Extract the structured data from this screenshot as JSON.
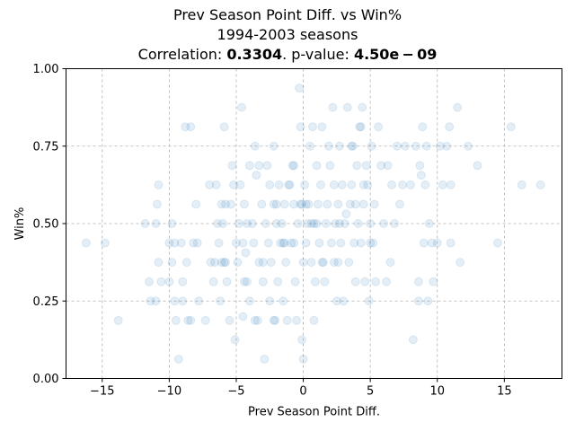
{
  "chart_data": {
    "type": "scatter",
    "title": "Prev Season Point Diff. vs Win%",
    "subtitle": "1994-2003 seasons",
    "correlation_prefix": "Correlation: ",
    "correlation_value": "0.3304",
    "pvalue_prefix": ". p-value: ",
    "pvalue_value": "4.50e − 09",
    "xlabel": "Prev Season Point Diff.",
    "ylabel": "Win%",
    "xlim": [
      -17.7,
      19.3
    ],
    "ylim": [
      0,
      1
    ],
    "grid": true,
    "x_ticks": [
      -15,
      -10,
      -5,
      0,
      5,
      10,
      15
    ],
    "x_tick_labels": [
      "−15",
      "−10",
      "−5",
      "0",
      "5",
      "10",
      "15"
    ],
    "y_ticks": [
      0,
      0.25,
      0.5,
      0.75,
      1.0
    ],
    "y_tick_labels": [
      "0.00",
      "0.25",
      "0.50",
      "0.75",
      "1.00"
    ],
    "point_color": "#1f77b4",
    "point_alpha": 0.12,
    "points": [
      [
        -16.2,
        0.4375
      ],
      [
        -14.8,
        0.4375
      ],
      [
        -13.8,
        0.1875
      ],
      [
        -11.8,
        0.5
      ],
      [
        -11.5,
        0.3125
      ],
      [
        -11.4,
        0.25
      ],
      [
        -11.0,
        0.5
      ],
      [
        -11.0,
        0.25
      ],
      [
        -10.9,
        0.5625
      ],
      [
        -10.8,
        0.625
      ],
      [
        -10.8,
        0.375
      ],
      [
        -10.6,
        0.3125
      ],
      [
        -10.0,
        0.4375
      ],
      [
        -10.0,
        0.3125
      ],
      [
        -9.8,
        0.5
      ],
      [
        -9.8,
        0.375
      ],
      [
        -9.6,
        0.4375
      ],
      [
        -9.6,
        0.25
      ],
      [
        -9.5,
        0.1875
      ],
      [
        -9.3,
        0.0625
      ],
      [
        -9.1,
        0.4375
      ],
      [
        -9.0,
        0.3125
      ],
      [
        -9.0,
        0.25
      ],
      [
        -8.8,
        0.8125
      ],
      [
        -8.7,
        0.375
      ],
      [
        -8.6,
        0.1875
      ],
      [
        -8.4,
        0.8125
      ],
      [
        -8.4,
        0.1875
      ],
      [
        -8.2,
        0.4375
      ],
      [
        -8.0,
        0.5625
      ],
      [
        -7.9,
        0.4375
      ],
      [
        -7.8,
        0.25
      ],
      [
        -7.3,
        0.1875
      ],
      [
        -7.0,
        0.625
      ],
      [
        -6.9,
        0.375
      ],
      [
        -6.7,
        0.3125
      ],
      [
        -6.6,
        0.375
      ],
      [
        -6.5,
        0.625
      ],
      [
        -6.4,
        0.5
      ],
      [
        -6.3,
        0.4375
      ],
      [
        -6.2,
        0.25
      ],
      [
        -6.1,
        0.375
      ],
      [
        -6.0,
        0.5
      ],
      [
        -5.9,
        0.8125
      ],
      [
        -5.9,
        0.375
      ],
      [
        -5.8,
        0.5625
      ],
      [
        -5.7,
        0.3125
      ],
      [
        -5.5,
        0.1875
      ],
      [
        -5.4,
        0.5625
      ],
      [
        -5.3,
        0.6875
      ],
      [
        -5.2,
        0.625
      ],
      [
        -5.1,
        0.125
      ],
      [
        -5.0,
        0.4375
      ],
      [
        -4.9,
        0.375
      ],
      [
        -4.8,
        0.5
      ],
      [
        -4.7,
        0.625
      ],
      [
        -4.6,
        0.875
      ],
      [
        -4.5,
        0.4375
      ],
      [
        -4.5,
        0.2
      ],
      [
        -4.4,
        0.5625
      ],
      [
        -4.3,
        0.4063
      ],
      [
        -4.2,
        0.5
      ],
      [
        -4.2,
        0.3125
      ],
      [
        -4.0,
        0.25
      ],
      [
        -4.0,
        0.6875
      ],
      [
        -3.8,
        0.5
      ],
      [
        -3.7,
        0.4375
      ],
      [
        -3.6,
        0.75
      ],
      [
        -3.5,
        0.6563
      ],
      [
        -3.4,
        0.1875
      ],
      [
        -3.3,
        0.375
      ],
      [
        -3.3,
        0.6875
      ],
      [
        -3.1,
        0.5625
      ],
      [
        -3.0,
        0.375
      ],
      [
        -2.9,
        0.0625
      ],
      [
        -2.8,
        0.5
      ],
      [
        -2.7,
        0.6875
      ],
      [
        -2.6,
        0.4375
      ],
      [
        -2.5,
        0.25
      ],
      [
        -2.5,
        0.625
      ],
      [
        -2.4,
        0.375
      ],
      [
        -2.2,
        0.5625
      ],
      [
        -2.2,
        0.75
      ],
      [
        -2.1,
        0.1875
      ],
      [
        -2.0,
        0.5
      ],
      [
        -1.9,
        0.3125
      ],
      [
        -1.8,
        0.625
      ],
      [
        -1.7,
        0.4375
      ],
      [
        -1.6,
        0.5
      ],
      [
        -1.5,
        0.25
      ],
      [
        -1.4,
        0.5625
      ],
      [
        -1.3,
        0.375
      ],
      [
        -1.2,
        0.1875
      ],
      [
        -1.1,
        0.625
      ],
      [
        -1.0,
        0.625
      ],
      [
        -0.9,
        0.4375
      ],
      [
        -0.8,
        0.6875
      ],
      [
        -0.7,
        0.5625
      ],
      [
        -0.7,
        0.4375
      ],
      [
        -0.6,
        0.3125
      ],
      [
        -0.5,
        0.1875
      ],
      [
        -0.4,
        0.5
      ],
      [
        -0.3,
        0.9375
      ],
      [
        -0.2,
        0.8125
      ],
      [
        -0.2,
        0.5625
      ],
      [
        -0.1,
        0.125
      ],
      [
        0.0,
        0.0625
      ],
      [
        0.0,
        0.375
      ],
      [
        0.1,
        0.625
      ],
      [
        0.2,
        0.4375
      ],
      [
        0.3,
        0.5
      ],
      [
        0.4,
        0.5625
      ],
      [
        0.5,
        0.75
      ],
      [
        0.6,
        0.375
      ],
      [
        0.7,
        0.8125
      ],
      [
        0.8,
        0.5
      ],
      [
        0.8,
        0.1875
      ],
      [
        0.9,
        0.3125
      ],
      [
        1.0,
        0.6875
      ],
      [
        1.1,
        0.5625
      ],
      [
        1.2,
        0.4375
      ],
      [
        1.3,
        0.625
      ],
      [
        1.4,
        0.8125
      ],
      [
        1.5,
        0.375
      ],
      [
        1.6,
        0.3125
      ],
      [
        1.7,
        0.5
      ],
      [
        1.8,
        0.5625
      ],
      [
        1.9,
        0.75
      ],
      [
        2.0,
        0.6875
      ],
      [
        2.1,
        0.4375
      ],
      [
        2.2,
        0.875
      ],
      [
        2.3,
        0.375
      ],
      [
        2.4,
        0.5
      ],
      [
        2.5,
        0.25
      ],
      [
        2.6,
        0.5625
      ],
      [
        2.7,
        0.75
      ],
      [
        2.8,
        0.4375
      ],
      [
        2.9,
        0.625
      ],
      [
        3.0,
        0.25
      ],
      [
        3.1,
        0.5
      ],
      [
        3.2,
        0.5313
      ],
      [
        3.3,
        0.875
      ],
      [
        3.4,
        0.375
      ],
      [
        3.5,
        0.5625
      ],
      [
        3.6,
        0.625
      ],
      [
        3.7,
        0.75
      ],
      [
        3.8,
        0.4375
      ],
      [
        3.9,
        0.3125
      ],
      [
        4.0,
        0.6875
      ],
      [
        4.1,
        0.5
      ],
      [
        4.2,
        0.8125
      ],
      [
        4.3,
        0.4375
      ],
      [
        4.4,
        0.875
      ],
      [
        4.5,
        0.5625
      ],
      [
        4.6,
        0.3125
      ],
      [
        4.7,
        0.6875
      ],
      [
        4.8,
        0.625
      ],
      [
        4.9,
        0.25
      ],
      [
        5.0,
        0.5
      ],
      [
        5.1,
        0.75
      ],
      [
        5.2,
        0.4375
      ],
      [
        5.3,
        0.5625
      ],
      [
        5.4,
        0.3125
      ],
      [
        5.6,
        0.8125
      ],
      [
        5.8,
        0.6875
      ],
      [
        6.0,
        0.5
      ],
      [
        6.2,
        0.3125
      ],
      [
        6.3,
        0.6875
      ],
      [
        6.5,
        0.375
      ],
      [
        6.6,
        0.625
      ],
      [
        6.8,
        0.5
      ],
      [
        7.0,
        0.75
      ],
      [
        7.2,
        0.5625
      ],
      [
        7.4,
        0.625
      ],
      [
        7.6,
        0.75
      ],
      [
        8.0,
        0.625
      ],
      [
        8.2,
        0.125
      ],
      [
        8.4,
        0.75
      ],
      [
        8.6,
        0.3125
      ],
      [
        8.6,
        0.25
      ],
      [
        8.7,
        0.6875
      ],
      [
        8.8,
        0.6563
      ],
      [
        8.9,
        0.8125
      ],
      [
        9.0,
        0.4375
      ],
      [
        9.1,
        0.625
      ],
      [
        9.2,
        0.75
      ],
      [
        9.3,
        0.25
      ],
      [
        9.4,
        0.5
      ],
      [
        9.6,
        0.4375
      ],
      [
        9.7,
        0.3125
      ],
      [
        10.0,
        0.4375
      ],
      [
        10.2,
        0.75
      ],
      [
        10.4,
        0.625
      ],
      [
        10.7,
        0.75
      ],
      [
        10.9,
        0.8125
      ],
      [
        11.0,
        0.4375
      ],
      [
        11.0,
        0.625
      ],
      [
        11.5,
        0.875
      ],
      [
        11.7,
        0.375
      ],
      [
        12.3,
        0.75
      ],
      [
        13.0,
        0.6875
      ],
      [
        14.5,
        0.4375
      ],
      [
        15.5,
        0.8125
      ],
      [
        16.3,
        0.625
      ],
      [
        17.7,
        0.625
      ],
      [
        -3.6,
        0.1875
      ],
      [
        -2.2,
        0.1875
      ],
      [
        -1.5,
        0.4375
      ],
      [
        -0.7,
        0.6875
      ],
      [
        0.2,
        0.5625
      ],
      [
        1.0,
        0.5
      ],
      [
        2.6,
        0.375
      ],
      [
        3.9,
        0.5625
      ],
      [
        4.3,
        0.8125
      ],
      [
        -5.8,
        0.375
      ],
      [
        -6.1,
        0.5625
      ],
      [
        -4.4,
        0.3125
      ],
      [
        -1.4,
        0.4375
      ],
      [
        0.6,
        0.5
      ],
      [
        2.3,
        0.625
      ],
      [
        4.5,
        0.625
      ],
      [
        -2.0,
        0.5625
      ],
      [
        -0.1,
        0.5625
      ],
      [
        1.4,
        0.375
      ],
      [
        3.6,
        0.75
      ],
      [
        5.0,
        0.4375
      ],
      [
        -3.0,
        0.3125
      ],
      [
        2.7,
        0.5
      ]
    ]
  }
}
